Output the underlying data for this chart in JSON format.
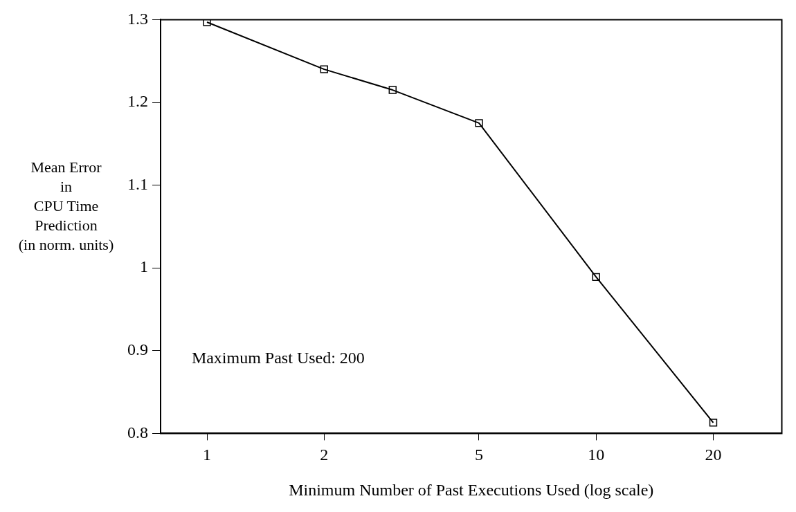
{
  "chart_data": {
    "type": "line",
    "xlabel": "Minimum Number of Past Executions Used (log scale)",
    "ylabel": "Mean Error\nin\nCPU Time\nPrediction\n(in norm. units)",
    "annotations": [
      "Maximum Past Used: 200"
    ],
    "x": [
      1,
      2,
      3,
      5,
      10,
      20
    ],
    "series": [
      {
        "color": "#000000",
        "values": [
          1.297,
          1.24,
          1.215,
          1.175,
          0.989,
          0.813
        ]
      }
    ],
    "log": "x",
    "xlim": [
      0.76,
      30
    ],
    "xticks": [
      1,
      2,
      5,
      10,
      20
    ],
    "ylim": [
      0.8,
      1.3
    ],
    "yticks": [
      0.8,
      0.9,
      1,
      1.1,
      1.2,
      1.3
    ],
    "grid": false,
    "legend": false,
    "marker": "square",
    "line_style": "solid"
  }
}
